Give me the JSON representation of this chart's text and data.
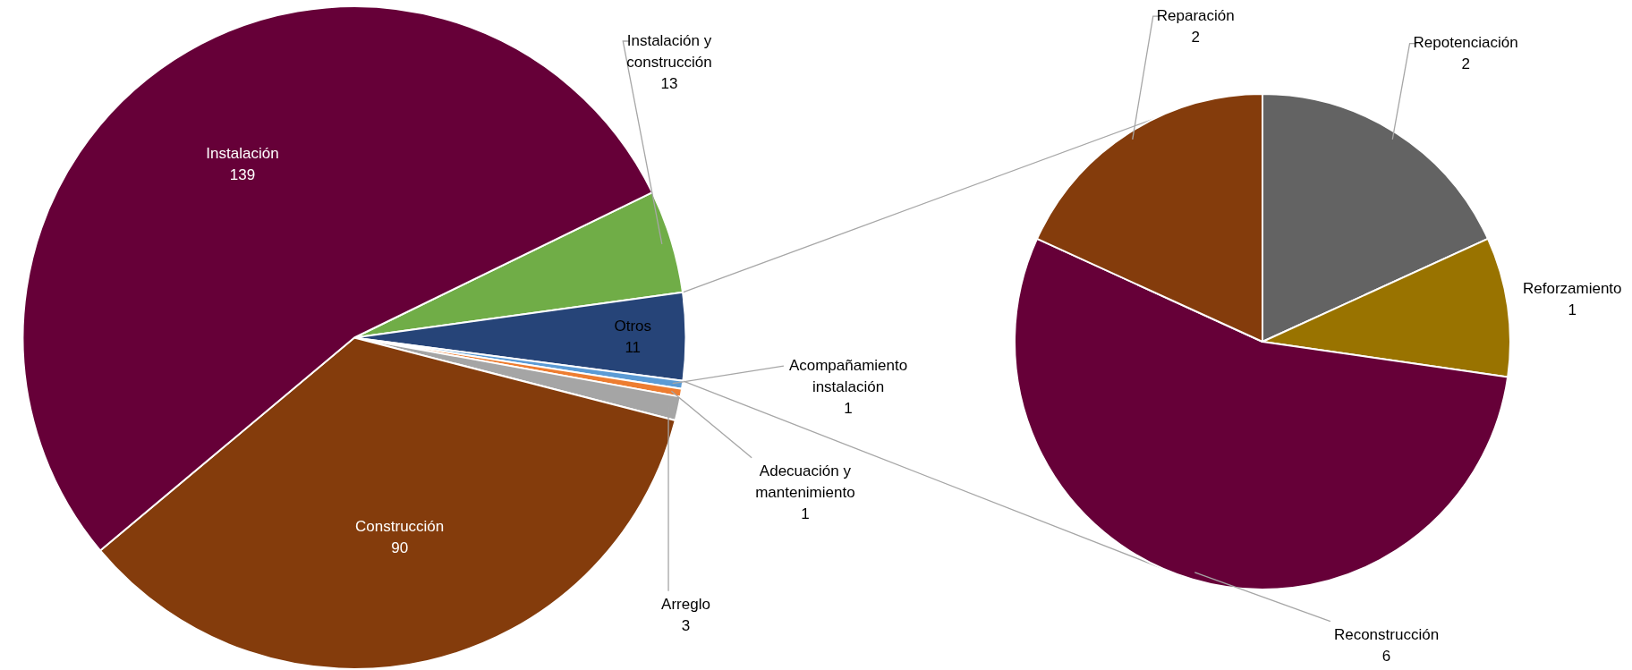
{
  "chart_data": [
    {
      "type": "pie",
      "categories": [
        "Instalación y construcción",
        "Otros",
        "Acompañamiento instalación",
        "Adecuación y mantenimiento",
        "Arreglo",
        "Construcción",
        "Instalación"
      ],
      "values": [
        13,
        11,
        1,
        1,
        3,
        90,
        139
      ],
      "colors": [
        "#70ad47",
        "#264478",
        "#5b9bd5",
        "#ed7d31",
        "#a5a5a5",
        "#843c0c",
        "#660038"
      ],
      "data_labels": true,
      "legend": false
    },
    {
      "type": "pie",
      "categories": [
        "Repotenciación",
        "Reforzamiento",
        "Reconstrucción",
        "Reparación"
      ],
      "values": [
        2,
        1,
        6,
        2
      ],
      "colors": [
        "#636363",
        "#997300",
        "#660038",
        "#843c0c"
      ],
      "data_labels": true,
      "legend": false
    }
  ]
}
